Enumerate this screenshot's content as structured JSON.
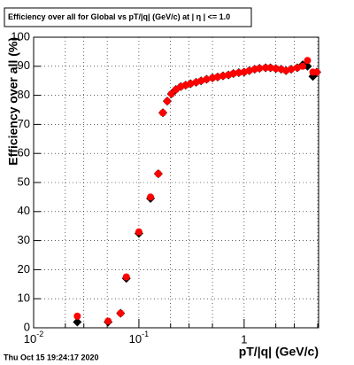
{
  "chart_data": {
    "type": "scatter",
    "title": "Efficiency over all for Global vs pT/|q| (GeV/c) at |  η | <= 1.0",
    "xlabel": "pT/|q| (GeV/c)",
    "ylabel": "Efficiency over all (%)",
    "footer": "Thu Oct 15 19:24:17 2020",
    "xscale": "log",
    "grid": true,
    "xlim": [
      0.01,
      5.1
    ],
    "ylim": [
      0,
      100
    ],
    "xticks": [
      {
        "value": 0.01,
        "label": "10",
        "exponent": "-2"
      },
      {
        "value": 0.1,
        "label": "10",
        "exponent": "-1"
      },
      1
    ],
    "xminorticks": [
      0.02,
      0.03,
      0.05,
      0.2,
      0.3,
      0.5,
      2,
      3,
      5
    ],
    "yticks": [
      0,
      10,
      20,
      30,
      40,
      50,
      60,
      70,
      80,
      90,
      100
    ],
    "series": [
      {
        "name": "black",
        "color": "#000000",
        "x": [
          0.026,
          0.051,
          0.067,
          0.076,
          0.1,
          0.129,
          0.153,
          0.169,
          0.186,
          0.204,
          0.225,
          0.25,
          0.278,
          0.31,
          0.35,
          0.39,
          0.44,
          0.5,
          0.56,
          0.63,
          0.71,
          0.79,
          0.89,
          1.0,
          1.12,
          1.26,
          1.4,
          1.6,
          1.78,
          2.0,
          2.25,
          2.5,
          2.8,
          3.2,
          3.6,
          4.0,
          4.5,
          4.9
        ],
        "values": [
          2,
          2,
          5,
          17,
          32.5,
          44.5,
          53,
          74,
          78,
          80.5,
          82,
          83,
          83.5,
          84,
          84.5,
          85,
          85.5,
          86,
          86.3,
          86.7,
          87,
          87.5,
          87.8,
          88,
          88.5,
          89,
          89.3,
          89.5,
          89.5,
          89.2,
          89,
          88.5,
          89,
          89.5,
          90.5,
          90,
          86.5,
          88
        ]
      },
      {
        "name": "red",
        "color": "#ff0000",
        "x": [
          0.026,
          0.051,
          0.067,
          0.076,
          0.1,
          0.129,
          0.153,
          0.169,
          0.186,
          0.204,
          0.225,
          0.25,
          0.278,
          0.31,
          0.35,
          0.39,
          0.44,
          0.5,
          0.56,
          0.63,
          0.71,
          0.79,
          0.89,
          1.0,
          1.12,
          1.26,
          1.4,
          1.6,
          1.78,
          2.0,
          2.25,
          2.5,
          2.8,
          3.2,
          3.6,
          4.0,
          4.5,
          4.9
        ],
        "values": [
          4,
          2.3,
          5,
          17.5,
          33,
          45,
          53,
          74,
          78,
          80.5,
          82,
          83,
          83.5,
          84,
          84.5,
          85,
          85.5,
          86,
          86.3,
          86.7,
          87,
          87.5,
          87.8,
          88,
          88.5,
          89,
          89.3,
          89.5,
          89.5,
          89.2,
          89,
          88.5,
          89,
          89.5,
          90,
          92,
          88,
          88
        ]
      }
    ]
  }
}
